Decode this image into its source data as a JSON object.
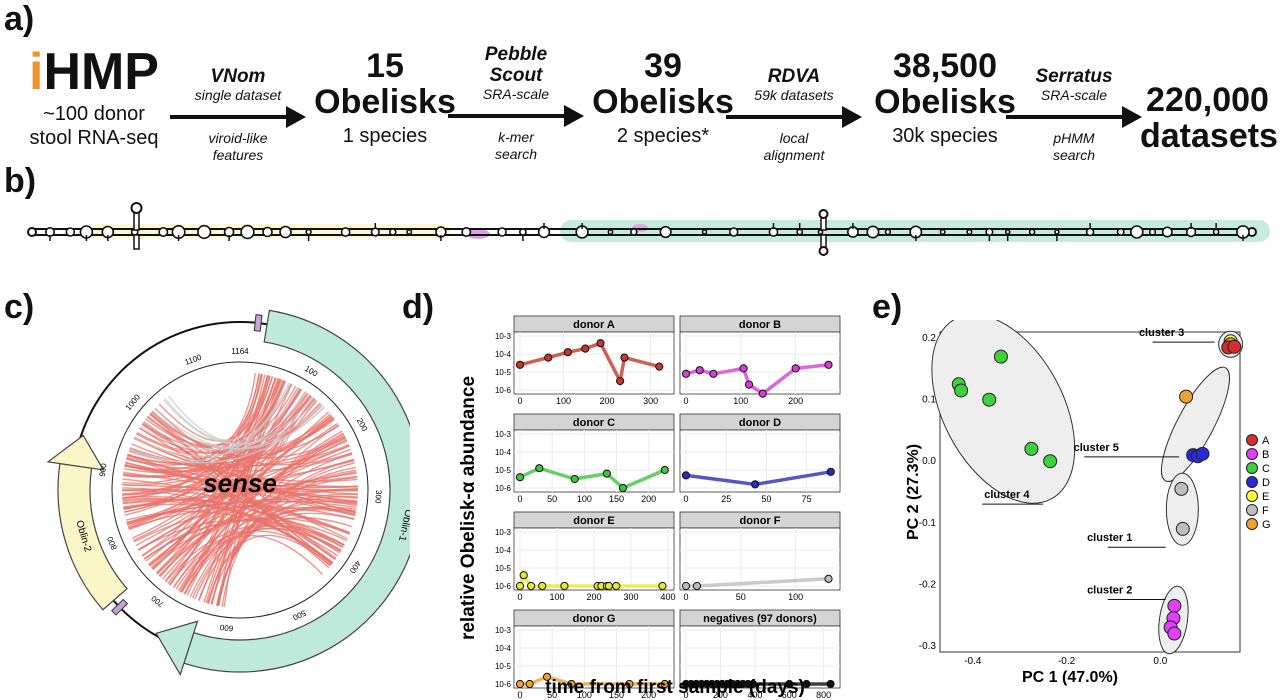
{
  "panels": {
    "a": "a)",
    "b": "b)",
    "c": "c)",
    "d": "d)",
    "e": "e)"
  },
  "pipeline": {
    "source": {
      "prefix": "i",
      "name": "HMP",
      "line1": "~100 donor",
      "line2": "stool RNA-seq"
    },
    "stages": [
      {
        "count": "15",
        "unit": "Obelisks",
        "sub": "1 species"
      },
      {
        "count": "39",
        "unit": "Obelisks",
        "sub": "2 species*"
      },
      {
        "count": "38,500",
        "unit": "Obelisks",
        "sub": "30k species"
      },
      {
        "count": "220,000",
        "unit": "datasets",
        "sub": ""
      }
    ],
    "steps": [
      {
        "name": "VNom",
        "above": "single dataset",
        "below1": "viroid-like",
        "below2": "features"
      },
      {
        "name": "Pebble",
        "name2": "Scout",
        "above": "SRA-scale",
        "below1": "k-mer",
        "below2": "search"
      },
      {
        "name": "RDVA",
        "above": "59k datasets",
        "below1": "local",
        "below2": "alignment"
      },
      {
        "name": "Serratus",
        "above": "SRA-scale",
        "below1": "pHMM",
        "below2": "search"
      }
    ]
  },
  "circos": {
    "center_label": "sense",
    "genes": [
      {
        "name": "Oblin-1",
        "color": "#bfeadb"
      },
      {
        "name": "Oblin-2",
        "color": "#fbf6c8"
      }
    ],
    "ticks": [
      "1164",
      "100",
      "200",
      "300",
      "400",
      "500",
      "600",
      "700",
      "800",
      "900",
      "1000",
      "1100"
    ],
    "tick_values": [
      1164,
      100,
      200,
      300,
      400,
      500,
      600,
      700,
      800,
      900,
      1000,
      1100
    ],
    "total": 1164
  },
  "panel_d": {
    "ylabel": "relative Obelisk-α abundance",
    "xlabel": "time from first sample (days)",
    "yticks": [
      "10-3",
      "10-4",
      "10-5",
      "10-6"
    ],
    "facets": [
      {
        "title": "donor A",
        "color": "#c0392b",
        "xticks": [
          "0",
          "100",
          "200",
          "300"
        ],
        "xmax": 340,
        "points": [
          [
            0,
            -4.6
          ],
          [
            65,
            -4.2
          ],
          [
            110,
            -3.9
          ],
          [
            150,
            -3.7
          ],
          [
            185,
            -3.4
          ],
          [
            230,
            -5.5
          ],
          [
            240,
            -4.2
          ],
          [
            320,
            -4.7
          ]
        ]
      },
      {
        "title": "donor B",
        "color": "#d63fd6",
        "xticks": [
          "0",
          "100",
          "200"
        ],
        "xmax": 270,
        "points": [
          [
            0,
            -5.1
          ],
          [
            25,
            -4.9
          ],
          [
            50,
            -5.1
          ],
          [
            105,
            -4.8
          ],
          [
            115,
            -5.7
          ],
          [
            140,
            -6.2
          ],
          [
            200,
            -4.8
          ],
          [
            260,
            -4.6
          ]
        ]
      },
      {
        "title": "donor C",
        "color": "#3ec63e",
        "xticks": [
          "0",
          "50",
          "100",
          "150",
          "200"
        ],
        "xmax": 230,
        "points": [
          [
            0,
            -5.4
          ],
          [
            30,
            -4.9
          ],
          [
            85,
            -5.5
          ],
          [
            135,
            -5.2
          ],
          [
            160,
            -6.0
          ],
          [
            225,
            -5.0
          ]
        ]
      },
      {
        "title": "donor D",
        "color": "#2a2ab8",
        "xticks": [
          "0",
          "25",
          "50",
          "75"
        ],
        "xmax": 92,
        "points": [
          [
            0,
            -5.3
          ],
          [
            43,
            -5.8
          ],
          [
            90,
            -5.1
          ]
        ]
      },
      {
        "title": "donor E",
        "color": "#e8e82a",
        "xticks": [
          "0",
          "100",
          "200",
          "300",
          "400"
        ],
        "xmax": 400,
        "points": [
          [
            0,
            -6
          ],
          [
            10,
            -5.4
          ],
          [
            30,
            -6
          ],
          [
            60,
            -6
          ],
          [
            120,
            -6
          ],
          [
            210,
            -6
          ],
          [
            220,
            -6
          ],
          [
            235,
            -6
          ],
          [
            240,
            -6
          ],
          [
            260,
            -6
          ],
          [
            385,
            -6
          ]
        ]
      },
      {
        "title": "donor F",
        "color": "#bdbdbd",
        "xticks": [
          "0",
          "50",
          "100"
        ],
        "xmax": 135,
        "points": [
          [
            0,
            -6
          ],
          [
            10,
            -6
          ],
          [
            130,
            -5.6
          ]
        ]
      },
      {
        "title": "donor G",
        "color": "#f0a030",
        "xticks": [
          "0",
          "50",
          "100",
          "150",
          "200"
        ],
        "xmax": 230,
        "points": [
          [
            0,
            -6
          ],
          [
            15,
            -6
          ],
          [
            42,
            -5.6
          ],
          [
            80,
            -6
          ],
          [
            170,
            -6
          ],
          [
            225,
            -6
          ]
        ]
      },
      {
        "title": "negatives (97 donors)",
        "color": "#111111",
        "xticks": [
          "0",
          "200",
          "400",
          "600",
          "800"
        ],
        "xmax": 860,
        "points": [
          [
            0,
            -6
          ],
          [
            30,
            -6
          ],
          [
            60,
            -6
          ],
          [
            90,
            -6
          ],
          [
            120,
            -6
          ],
          [
            150,
            -6
          ],
          [
            180,
            -6
          ],
          [
            210,
            -6
          ],
          [
            240,
            -6
          ],
          [
            270,
            -6
          ],
          [
            300,
            -6
          ],
          [
            330,
            -6
          ],
          [
            360,
            -6
          ],
          [
            390,
            -6
          ],
          [
            600,
            -6
          ],
          [
            700,
            -6
          ],
          [
            840,
            -6
          ]
        ]
      }
    ]
  },
  "chart_data": {
    "type": "scatter",
    "xlabel": "PC 1 (47.0%)",
    "ylabel": "PC 2 (27.3%)",
    "xlim": [
      -0.47,
      0.17
    ],
    "ylim": [
      -0.31,
      0.21
    ],
    "xticks": [
      "-0.4",
      "-0.2",
      "0.0"
    ],
    "xtick_values": [
      -0.4,
      -0.2,
      0.0
    ],
    "yticks": [
      "0.2",
      "0.1",
      "0.0",
      "-0.1",
      "-0.2",
      "-0.3"
    ],
    "ytick_values": [
      0.2,
      0.1,
      0.0,
      -0.1,
      -0.2,
      -0.3
    ],
    "legend": [
      {
        "label": "A",
        "color": "#d32f2f"
      },
      {
        "label": "B",
        "color": "#e040fb"
      },
      {
        "label": "C",
        "color": "#3ed13e"
      },
      {
        "label": "D",
        "color": "#2a2adb"
      },
      {
        "label": "E",
        "color": "#ffff33"
      },
      {
        "label": "F",
        "color": "#bdbdbd"
      },
      {
        "label": "G",
        "color": "#f0a030"
      }
    ],
    "legend_position": "right",
    "clusters": [
      {
        "label": "cluster 1"
      },
      {
        "label": "cluster 2"
      },
      {
        "label": "cluster 3"
      },
      {
        "label": "cluster 4"
      },
      {
        "label": "cluster 5"
      }
    ],
    "points": [
      {
        "g": "C",
        "x": -0.43,
        "y": 0.125
      },
      {
        "g": "C",
        "x": -0.425,
        "y": 0.115
      },
      {
        "g": "C",
        "x": -0.365,
        "y": 0.1
      },
      {
        "g": "C",
        "x": -0.34,
        "y": 0.17
      },
      {
        "g": "C",
        "x": -0.275,
        "y": 0.02
      },
      {
        "g": "C",
        "x": -0.235,
        "y": 0.0
      },
      {
        "g": "E",
        "x": 0.15,
        "y": 0.195
      },
      {
        "g": "G",
        "x": 0.15,
        "y": 0.19
      },
      {
        "g": "A",
        "x": 0.145,
        "y": 0.185
      },
      {
        "g": "A",
        "x": 0.158,
        "y": 0.186
      },
      {
        "g": "G",
        "x": 0.055,
        "y": 0.105
      },
      {
        "g": "D",
        "x": 0.07,
        "y": 0.01
      },
      {
        "g": "D",
        "x": 0.08,
        "y": 0.008
      },
      {
        "g": "D",
        "x": 0.09,
        "y": 0.012
      },
      {
        "g": "F",
        "x": 0.045,
        "y": -0.045
      },
      {
        "g": "F",
        "x": 0.048,
        "y": -0.11
      },
      {
        "g": "B",
        "x": 0.03,
        "y": -0.235
      },
      {
        "g": "B",
        "x": 0.028,
        "y": -0.255
      },
      {
        "g": "B",
        "x": 0.022,
        "y": -0.27
      },
      {
        "g": "B",
        "x": 0.03,
        "y": -0.28
      }
    ]
  }
}
